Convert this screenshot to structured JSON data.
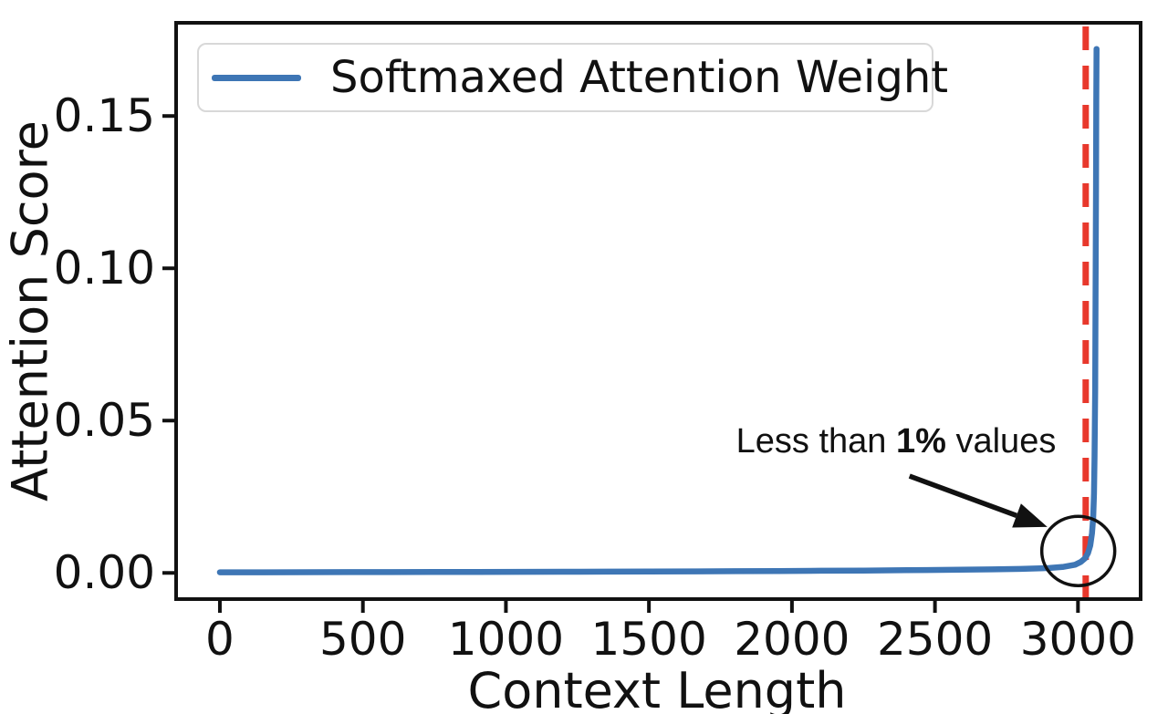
{
  "figure": {
    "background": "#ffffff"
  },
  "colors": {
    "series_blue": "#3E76B5",
    "vline_red": "#E8382C",
    "axis_black": "#111111",
    "legend_border": "#d8d8d8"
  },
  "legend": {
    "label": "Softmaxed Attention Weight"
  },
  "annotation": {
    "text_prefix": "Less than ",
    "text_bold": "1%",
    "text_suffix": " values"
  },
  "chart_data": {
    "type": "line",
    "title": "",
    "xlabel": "Context Length",
    "ylabel": "Attention Score",
    "xlim": [
      -153,
      3219
    ],
    "ylim": [
      -0.0086,
      0.1806
    ],
    "grid": false,
    "legend_position": "upper left",
    "x_ticks": [
      0,
      500,
      1000,
      1500,
      2000,
      2500,
      3000
    ],
    "x_tick_labels": [
      "0",
      "500",
      "1000",
      "1500",
      "2000",
      "2500",
      "3000"
    ],
    "y_ticks": [
      0,
      0.05,
      0.1,
      0.15
    ],
    "y_tick_labels": [
      "0.00",
      "0.05",
      "0.10",
      "0.15"
    ],
    "series": [
      {
        "name": "Softmaxed Attention Weight",
        "color": "#3E76B5",
        "x": [
          0,
          150,
          300,
          450,
          600,
          750,
          900,
          1050,
          1200,
          1350,
          1500,
          1650,
          1800,
          1950,
          2100,
          2250,
          2400,
          2550,
          2700,
          2800,
          2900,
          2950,
          2990,
          3010,
          3025,
          3035,
          3043,
          3049,
          3053,
          3056,
          3058,
          3060,
          3061.5,
          3063,
          3064,
          3065
        ],
        "y": [
          0.0002,
          0.00021,
          0.00023,
          0.00025,
          0.00027,
          0.00029,
          0.00032,
          0.00035,
          0.00038,
          0.00042,
          0.00046,
          0.00051,
          0.00057,
          0.00063,
          0.0007,
          0.00078,
          0.00088,
          0.001,
          0.00115,
          0.0013,
          0.0016,
          0.002,
          0.0027,
          0.0036,
          0.0048,
          0.0065,
          0.009,
          0.013,
          0.018,
          0.026,
          0.038,
          0.06,
          0.09,
          0.125,
          0.155,
          0.172
        ]
      }
    ],
    "vline": {
      "x": 3027,
      "color": "#E8382C",
      "style": "dashed"
    },
    "annotations": {
      "label_text": "Less than 1% values",
      "label_x": 2364,
      "label_y": 0.0432,
      "arrow_from_x": 2411,
      "arrow_from_y": 0.0318,
      "arrow_to_x": 2893,
      "arrow_to_y": 0.0151,
      "circle_cx": 3001,
      "circle_cy": 0.0072
    }
  }
}
